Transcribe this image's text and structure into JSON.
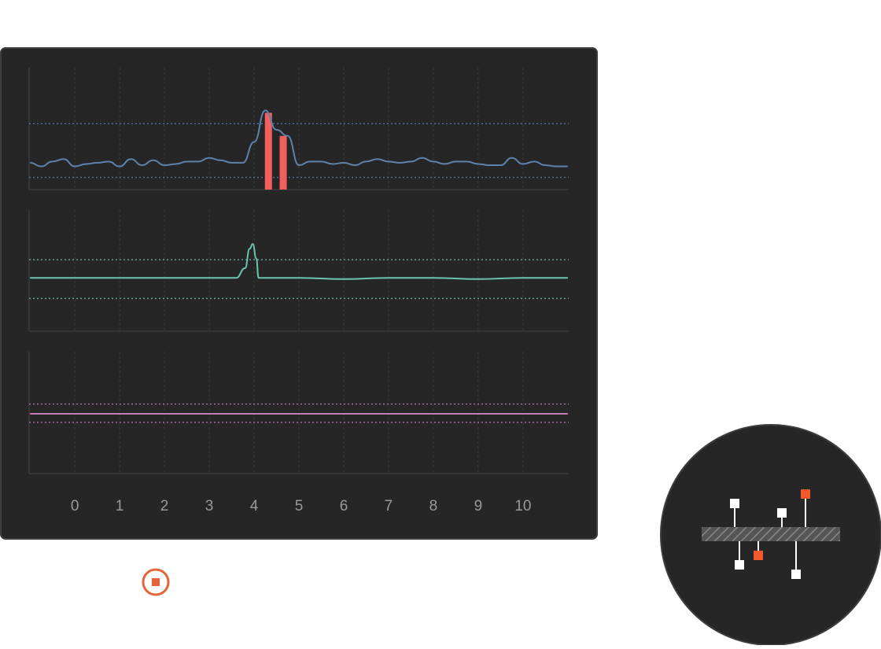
{
  "chart_data": [
    {
      "type": "line",
      "xlim": [
        -1.02,
        11.02
      ],
      "ylim": [
        0,
        100
      ],
      "thresholds": [
        54,
        10
      ],
      "series": [
        {
          "color": "#5d82ad",
          "x": [
            -1,
            -0.75,
            -0.5,
            -0.25,
            0,
            0.25,
            0.5,
            0.75,
            1,
            1.25,
            1.5,
            1.75,
            2,
            2.25,
            2.5,
            2.75,
            3,
            3.25,
            3.5,
            3.75,
            4,
            4.25,
            4.5,
            4.75,
            5,
            5.25,
            5.5,
            5.75,
            6,
            6.25,
            6.5,
            6.75,
            7,
            7.25,
            7.5,
            7.75,
            8,
            8.25,
            8.5,
            8.75,
            9,
            9.25,
            9.5,
            9.75,
            10,
            10.25,
            10.5,
            10.75,
            11
          ],
          "values": [
            22,
            19,
            23,
            25,
            19,
            21,
            22,
            23,
            19,
            25,
            20,
            24,
            20,
            21,
            23,
            23,
            26,
            24,
            22,
            22,
            39,
            65,
            49,
            44,
            20,
            23,
            23,
            21,
            22,
            20,
            23,
            25,
            23,
            22,
            23,
            26,
            23,
            21,
            23,
            23,
            21,
            20,
            20,
            26,
            21,
            23,
            20,
            19,
            19
          ]
        }
      ],
      "bars": {
        "color": "#f25f5c",
        "x": [
          4.32,
          4.65
        ],
        "values": [
          63,
          44
        ]
      }
    },
    {
      "type": "line",
      "xlim": [
        -1.02,
        11.02
      ],
      "ylim": [
        0,
        100
      ],
      "thresholds": [
        59,
        27
      ],
      "series": [
        {
          "color": "#6cc4b0",
          "x": [
            -1,
            0,
            1,
            2,
            3,
            3.6,
            3.8,
            3.9,
            3.97,
            4.05,
            4.1,
            4.3,
            5,
            6,
            7,
            8,
            9,
            10,
            11
          ],
          "values": [
            44,
            44,
            44,
            44,
            44,
            44,
            52,
            68,
            72,
            60,
            44,
            44,
            44,
            43,
            44,
            44,
            43,
            44,
            44
          ]
        }
      ]
    },
    {
      "type": "line",
      "xlim": [
        -1.02,
        11.02
      ],
      "ylim": [
        0,
        100
      ],
      "thresholds": [
        57,
        42
      ],
      "xticks": [
        0,
        1,
        2,
        3,
        4,
        5,
        6,
        7,
        8,
        9,
        10
      ],
      "series": [
        {
          "color": "#c57ab8",
          "x": [
            -1,
            11
          ],
          "values": [
            49,
            49
          ]
        }
      ]
    }
  ]
}
